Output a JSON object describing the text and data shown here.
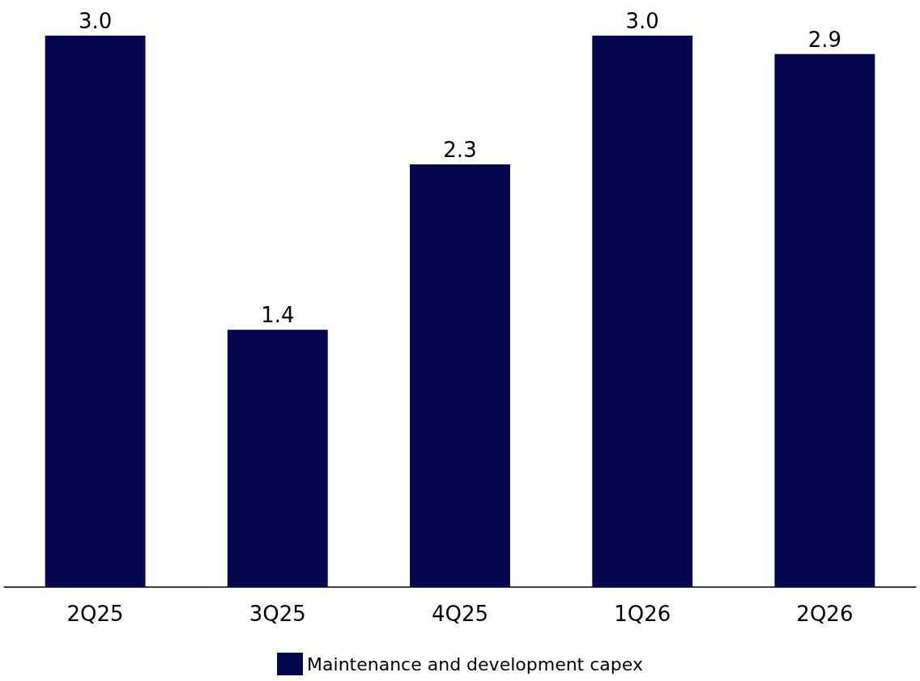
{
  "chart_data": {
    "type": "bar",
    "categories": [
      "2Q25",
      "3Q25",
      "4Q25",
      "1Q26",
      "2Q26"
    ],
    "series": [
      {
        "name": "Maintenance and development capex",
        "color": "#06064f",
        "values": [
          3.0,
          1.4,
          2.3,
          3.0,
          2.9
        ],
        "value_labels": [
          "3.0",
          "1.4",
          "2.3",
          "3.0",
          "2.9"
        ]
      }
    ],
    "legend": "bottom"
  }
}
